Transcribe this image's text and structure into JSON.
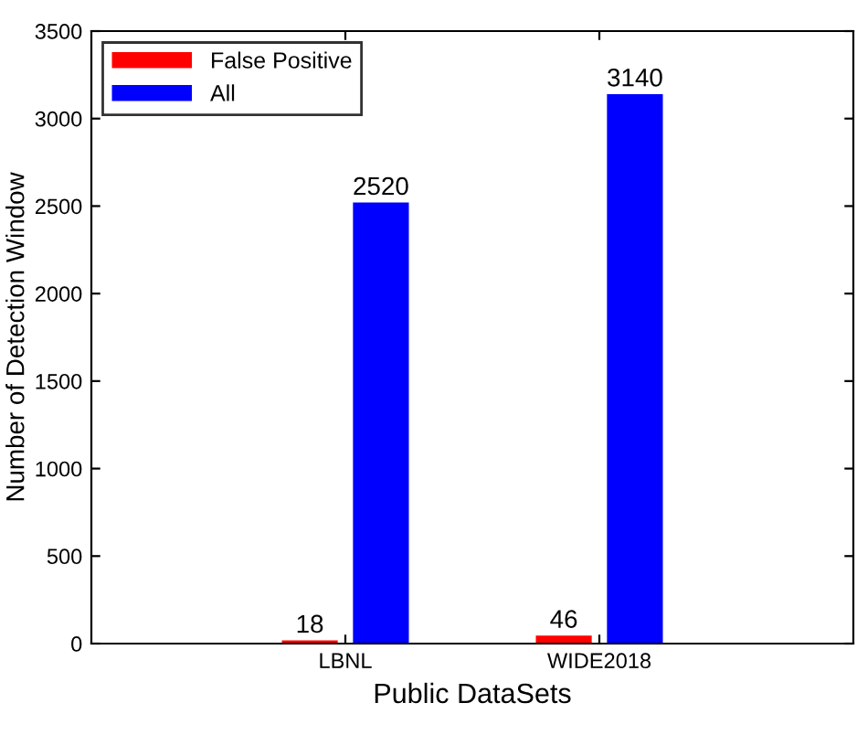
{
  "chart_data": {
    "type": "bar",
    "xlabel": "Public DataSets",
    "ylabel": "Number of Detection Window",
    "categories": [
      "LBNL",
      "WIDE2018"
    ],
    "series": [
      {
        "name": "False Positive",
        "color": "#ff0000",
        "values": [
          18,
          46
        ]
      },
      {
        "name": "All",
        "color": "#0000ff",
        "values": [
          2520,
          3140
        ]
      }
    ],
    "ylim": [
      0,
      3500
    ],
    "yticks": [
      0,
      500,
      1000,
      1500,
      2000,
      2500,
      3000,
      3500
    ],
    "data_labels": true,
    "legend": "top left",
    "grid": false
  }
}
